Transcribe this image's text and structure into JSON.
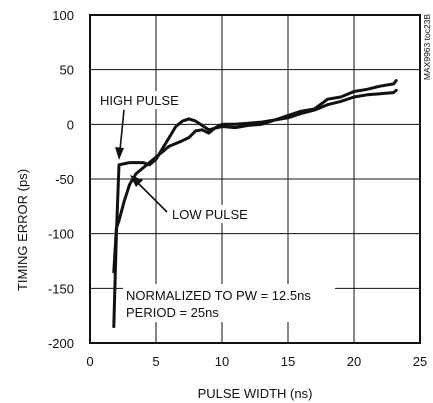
{
  "chart_data": {
    "type": "line",
    "xlabel": "PULSE WIDTH (ns)",
    "ylabel": "TIMING ERROR (ps)",
    "xlim": [
      0,
      25
    ],
    "ylim": [
      -200,
      100
    ],
    "xticks": [
      0,
      5,
      10,
      15,
      20,
      25
    ],
    "yticks": [
      -200,
      -150,
      -100,
      -50,
      0,
      50,
      100
    ],
    "grid": true,
    "code_label": "MAX9963 toc23B",
    "annotations": {
      "high_pulse": "HIGH PULSE",
      "low_pulse": "LOW PULSE",
      "note_line1": "NORMALIZED TO PW = 12.5ns",
      "note_line2": "PERIOD = 25ns"
    },
    "series": [
      {
        "name": "HIGH PULSE",
        "x": [
          1.8,
          2.0,
          2.2,
          3.0,
          4.0,
          4.5,
          5.0,
          6.0,
          6.5,
          7.0,
          7.5,
          8.0,
          9.0,
          10.0,
          11.0,
          12.0,
          13.0,
          14.0,
          15.0,
          16.0,
          17.0,
          18.0,
          19.0,
          20.0,
          21.0,
          22.0,
          23.0,
          23.2
        ],
        "y": [
          -185,
          -100,
          -37,
          -35,
          -35,
          -37,
          -32,
          -12,
          -2,
          3,
          5,
          3,
          -5,
          -2,
          -3,
          -1,
          0,
          4,
          6,
          10,
          13,
          18,
          21,
          25,
          27,
          28,
          29,
          31
        ]
      },
      {
        "name": "LOW PULSE",
        "x": [
          1.8,
          2.0,
          2.2,
          2.6,
          3.0,
          3.5,
          4.0,
          5.0,
          6.0,
          7.0,
          7.5,
          8.0,
          8.5,
          9.0,
          9.5,
          10.0,
          11.0,
          12.0,
          13.0,
          14.0,
          15.0,
          16.0,
          17.0,
          18.0,
          19.0,
          20.0,
          21.0,
          22.0,
          23.0,
          23.2
        ],
        "y": [
          -135,
          -95,
          -88,
          -70,
          -55,
          -45,
          -40,
          -30,
          -20,
          -15,
          -12,
          -6,
          -5,
          -8,
          -3,
          0,
          0,
          1,
          2,
          4,
          8,
          12,
          14,
          23,
          25,
          30,
          32,
          35,
          37,
          40
        ]
      }
    ]
  }
}
